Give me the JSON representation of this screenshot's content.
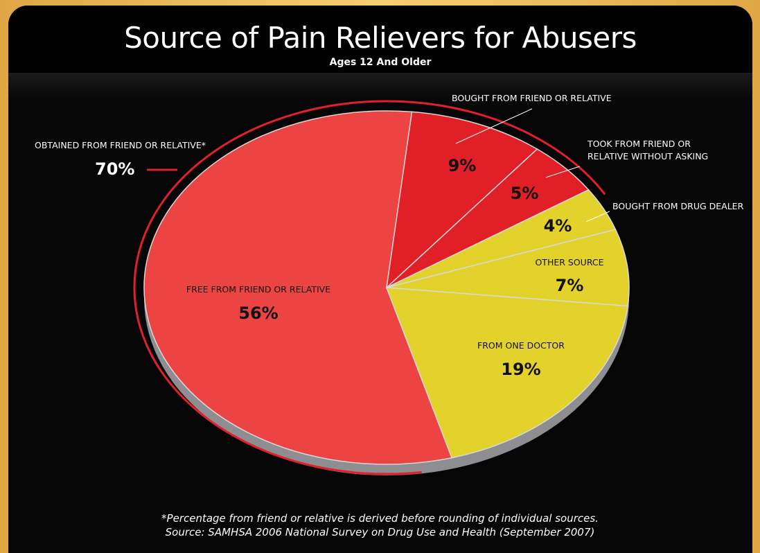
{
  "colors": {
    "red_slice": "#ec4343",
    "red_dark": "#e11f26",
    "yellow_slice": "#e3d12c",
    "ring": "#e2202a",
    "background": "#060606",
    "frame": "#f0c060"
  },
  "chart_data": {
    "type": "pie",
    "title": "Source of Pain Relievers for Abusers",
    "subtitle": "Ages 12 And Older",
    "slices": [
      {
        "label": "FREE FROM FRIEND OR RELATIVE",
        "value": 56,
        "value_label": "56%",
        "color": "red"
      },
      {
        "label": "BOUGHT FROM FRIEND OR RELATIVE",
        "value": 9,
        "value_label": "9%",
        "color": "red"
      },
      {
        "label": "TOOK FROM FRIEND OR RELATIVE WITHOUT ASKING",
        "value": 5,
        "value_label": "5%",
        "color": "red"
      },
      {
        "label": "BOUGHT FROM DRUG DEALER",
        "value": 4,
        "value_label": "4%",
        "color": "yellow"
      },
      {
        "label": "OTHER SOURCE",
        "value": 7,
        "value_label": "7%",
        "color": "yellow"
      },
      {
        "label": "FROM ONE DOCTOR",
        "value": 19,
        "value_label": "19%",
        "color": "yellow"
      }
    ],
    "group_annotation": {
      "label": "OBTAINED FROM FRIEND OR RELATIVE*",
      "value": 70,
      "value_label": "70%"
    },
    "labels": {
      "took_line1": "TOOK FROM FRIEND OR",
      "took_line2": "RELATIVE WITHOUT ASKING"
    },
    "footnote": "*Percentage from friend or relative is derived before rounding of individual sources.",
    "source": "Source: SAMHSA 2006 National Survey on Drug Use and Health (September 2007)"
  }
}
